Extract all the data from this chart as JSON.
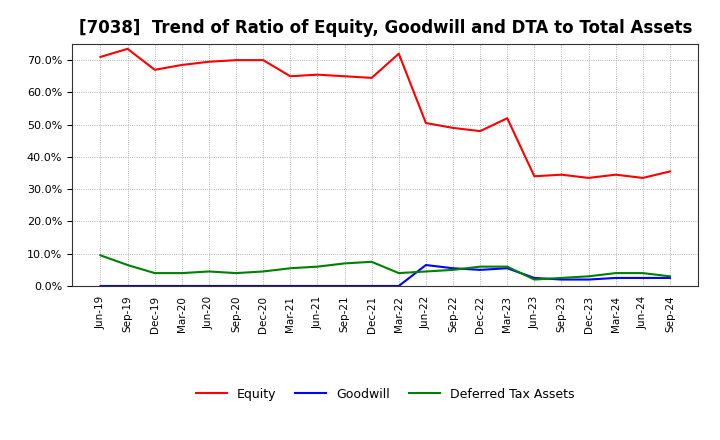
{
  "title": "[7038]  Trend of Ratio of Equity, Goodwill and DTA to Total Assets",
  "x_labels": [
    "Jun-19",
    "Sep-19",
    "Dec-19",
    "Mar-20",
    "Jun-20",
    "Sep-20",
    "Dec-20",
    "Mar-21",
    "Jun-21",
    "Sep-21",
    "Dec-21",
    "Mar-22",
    "Jun-22",
    "Sep-22",
    "Dec-22",
    "Mar-23",
    "Jun-23",
    "Sep-23",
    "Dec-23",
    "Mar-24",
    "Jun-24",
    "Sep-24"
  ],
  "equity": [
    71.0,
    73.5,
    67.0,
    68.5,
    69.5,
    70.0,
    70.0,
    65.0,
    65.5,
    65.0,
    64.5,
    72.0,
    50.5,
    49.0,
    48.0,
    52.0,
    34.0,
    34.5,
    33.5,
    34.5,
    33.5,
    35.5
  ],
  "goodwill": [
    0.0,
    0.0,
    0.0,
    0.0,
    0.0,
    0.0,
    0.0,
    0.0,
    0.0,
    0.0,
    0.0,
    0.0,
    6.5,
    5.5,
    5.0,
    5.5,
    2.5,
    2.0,
    2.0,
    2.5,
    2.5,
    2.5
  ],
  "dta": [
    9.5,
    6.5,
    4.0,
    4.0,
    4.5,
    4.0,
    4.5,
    5.5,
    6.0,
    7.0,
    7.5,
    4.0,
    4.5,
    5.0,
    6.0,
    6.0,
    2.0,
    2.5,
    3.0,
    4.0,
    4.0,
    3.0
  ],
  "equity_color": "#FF0000",
  "goodwill_color": "#0000FF",
  "dta_color": "#008000",
  "ylim": [
    0,
    75
  ],
  "yticks": [
    0,
    10,
    20,
    30,
    40,
    50,
    60,
    70
  ],
  "background_color": "#FFFFFF",
  "grid_color": "#999999",
  "legend_equity": "Equity",
  "legend_goodwill": "Goodwill",
  "legend_dta": "Deferred Tax Assets",
  "title_fontsize": 12
}
